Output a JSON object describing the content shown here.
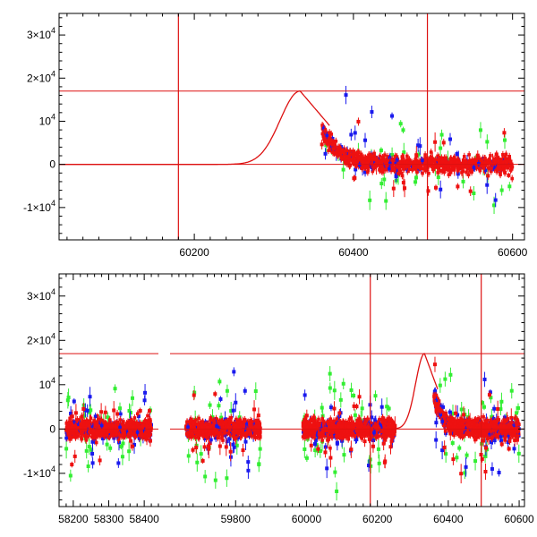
{
  "chart_data": [
    {
      "type": "scatter",
      "panel": "top",
      "title": "",
      "xlabel": "",
      "ylabel": "",
      "xlim": [
        60030,
        60615
      ],
      "ylim": [
        -17500,
        35000
      ],
      "x_ticks": [
        {
          "value": 60200,
          "label": "60200"
        },
        {
          "value": 60400,
          "label": "60400"
        },
        {
          "value": 60600,
          "label": "60600"
        }
      ],
      "y_ticks": [
        {
          "value": 30000,
          "base": "3×10",
          "exp": "4"
        },
        {
          "value": 20000,
          "base": "2×10",
          "exp": "4"
        },
        {
          "value": 10000,
          "base": "10",
          "exp": "4"
        },
        {
          "value": 0,
          "base": "0",
          "exp": ""
        },
        {
          "value": -10000,
          "base": "-1×10",
          "exp": "4"
        }
      ],
      "reference_lines": {
        "horizontal": [
          17000,
          0
        ],
        "vertical": [
          60180,
          60493
        ]
      },
      "model_curve": {
        "peak_x": 60333,
        "peak_y": 17000,
        "rise_sigma": 25,
        "baseline": 0,
        "end_x": 60370,
        "end_y": 9000
      },
      "data_segments": [
        {
          "x_start": 60360,
          "x_end": 60600,
          "baseline": 0,
          "head_excess": 8000,
          "decay": 22
        }
      ],
      "series_colors": {
        "green": "#33ee33",
        "blue": "#1a1aee",
        "red": "#ee1111",
        "lines": "#dd1111"
      }
    },
    {
      "type": "scatter",
      "panel": "bottom",
      "title": "",
      "xlabel": "",
      "ylabel": "",
      "ylim": [
        -17500,
        35000
      ],
      "x_segments": [
        {
          "xlim": [
            58160,
            58440
          ],
          "ticks": [
            {
              "value": 58200,
              "label": "58200"
            },
            {
              "value": 58300,
              "label": "58300"
            },
            {
              "value": 58400,
              "label": "58400"
            }
          ]
        },
        {
          "xlim": [
            59615,
            60615
          ],
          "ticks": [
            {
              "value": 59800,
              "label": "59800"
            },
            {
              "value": 60000,
              "label": "60000"
            },
            {
              "value": 60200,
              "label": "60200"
            },
            {
              "value": 60400,
              "label": "60400"
            },
            {
              "value": 60600,
              "label": "60600"
            }
          ]
        }
      ],
      "y_ticks": [
        {
          "value": 30000,
          "base": "3×10",
          "exp": "4"
        },
        {
          "value": 20000,
          "base": "2×10",
          "exp": "4"
        },
        {
          "value": 10000,
          "base": "10",
          "exp": "4"
        },
        {
          "value": 0,
          "base": "0",
          "exp": ""
        },
        {
          "value": -10000,
          "base": "-1×10",
          "exp": "4"
        }
      ],
      "reference_lines": {
        "horizontal": [
          17000,
          0
        ],
        "vertical": [
          60180,
          60493
        ]
      },
      "model_curve": {
        "peak_x": 60333,
        "peak_y": 17000,
        "rise_sigma": 25,
        "baseline": 0,
        "end_x": 60370,
        "end_y": 9000
      },
      "data_segments": [
        {
          "x_start": 58180,
          "x_end": 58420,
          "baseline": 0,
          "head_excess": 0,
          "decay": 1
        },
        {
          "x_start": 59660,
          "x_end": 59870,
          "baseline": 0,
          "head_excess": 0,
          "decay": 1
        },
        {
          "x_start": 59990,
          "x_end": 60250,
          "baseline": 0,
          "head_excess": 0,
          "decay": 1
        },
        {
          "x_start": 60360,
          "x_end": 60600,
          "baseline": 0,
          "head_excess": 8000,
          "decay": 22
        }
      ],
      "series_colors": {
        "green": "#33ee33",
        "blue": "#1a1aee",
        "red": "#ee1111",
        "lines": "#dd1111"
      }
    }
  ]
}
